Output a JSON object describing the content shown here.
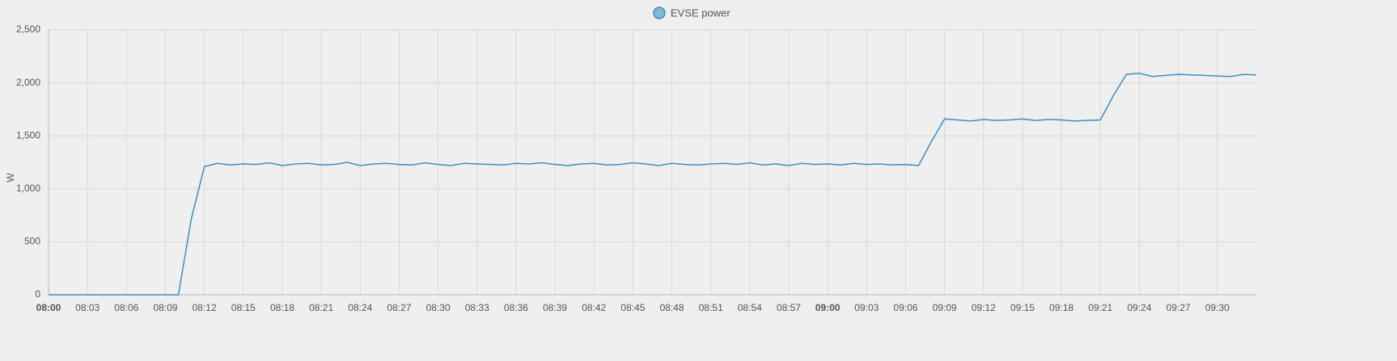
{
  "chart_data": {
    "type": "line",
    "y_label": "W",
    "x": [
      "08:00",
      "08:01",
      "08:02",
      "08:03",
      "08:04",
      "08:05",
      "08:06",
      "08:07",
      "08:08",
      "08:09",
      "08:10",
      "08:11",
      "08:12",
      "08:13",
      "08:14",
      "08:15",
      "08:16",
      "08:17",
      "08:18",
      "08:19",
      "08:20",
      "08:21",
      "08:22",
      "08:23",
      "08:24",
      "08:25",
      "08:26",
      "08:27",
      "08:28",
      "08:29",
      "08:30",
      "08:31",
      "08:32",
      "08:33",
      "08:34",
      "08:35",
      "08:36",
      "08:37",
      "08:38",
      "08:39",
      "08:40",
      "08:41",
      "08:42",
      "08:43",
      "08:44",
      "08:45",
      "08:46",
      "08:47",
      "08:48",
      "08:49",
      "08:50",
      "08:51",
      "08:52",
      "08:53",
      "08:54",
      "08:55",
      "08:56",
      "08:57",
      "08:58",
      "08:59",
      "09:00",
      "09:01",
      "09:02",
      "09:03",
      "09:04",
      "09:05",
      "09:06",
      "09:07",
      "09:08",
      "09:09",
      "09:10",
      "09:11",
      "09:12",
      "09:13",
      "09:14",
      "09:15",
      "09:16",
      "09:17",
      "09:18",
      "09:19",
      "09:20",
      "09:21",
      "09:22",
      "09:23",
      "09:24",
      "09:25",
      "09:26",
      "09:27",
      "09:28",
      "09:29",
      "09:30",
      "09:31",
      "09:32",
      "09:33"
    ],
    "series": [
      {
        "name": "EVSE power",
        "color": "#3a8fc4",
        "values": [
          0,
          0,
          0,
          0,
          0,
          0,
          0,
          0,
          0,
          0,
          0,
          720,
          1210,
          1240,
          1225,
          1235,
          1230,
          1245,
          1220,
          1235,
          1240,
          1225,
          1230,
          1250,
          1220,
          1235,
          1240,
          1230,
          1225,
          1245,
          1230,
          1220,
          1240,
          1235,
          1230,
          1225,
          1240,
          1235,
          1245,
          1230,
          1220,
          1235,
          1240,
          1225,
          1230,
          1245,
          1235,
          1220,
          1240,
          1230,
          1225,
          1235,
          1240,
          1230,
          1245,
          1225,
          1235,
          1220,
          1240,
          1230,
          1235,
          1225,
          1240,
          1230,
          1235,
          1225,
          1230,
          1220,
          1450,
          1660,
          1650,
          1640,
          1655,
          1645,
          1650,
          1660,
          1645,
          1655,
          1650,
          1640,
          1645,
          1650,
          1880,
          2080,
          2090,
          2060,
          2070,
          2080,
          2075,
          2070,
          2065,
          2060,
          2080,
          2075
        ]
      }
    ],
    "xlim": [
      "08:00",
      "09:33"
    ],
    "xticks": [
      "08:00",
      "08:03",
      "08:06",
      "08:09",
      "08:12",
      "08:15",
      "08:18",
      "08:21",
      "08:24",
      "08:27",
      "08:30",
      "08:33",
      "08:36",
      "08:39",
      "08:42",
      "08:45",
      "08:48",
      "08:51",
      "08:54",
      "08:57",
      "09:00",
      "09:03",
      "09:06",
      "09:09",
      "09:12",
      "09:15",
      "09:18",
      "09:21",
      "09:24",
      "09:27",
      "09:30"
    ],
    "ylim": [
      0,
      2500
    ],
    "yticks": [
      0,
      500,
      {
        "value": 1000,
        "label": "1,000"
      },
      {
        "value": 1500,
        "label": "1,500"
      },
      {
        "value": 2000,
        "label": "2,000"
      },
      {
        "value": 2500,
        "label": "2,500"
      }
    ],
    "grid": true
  }
}
